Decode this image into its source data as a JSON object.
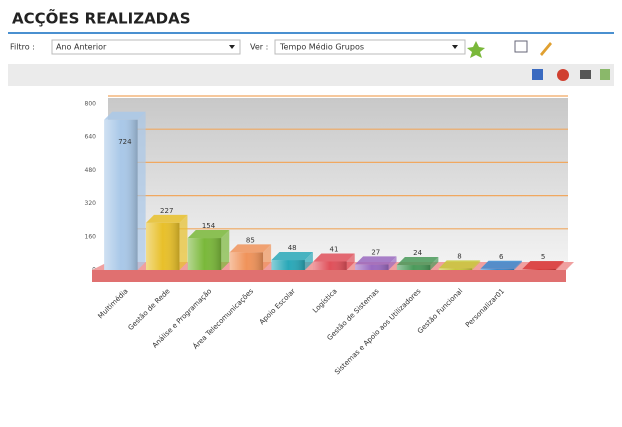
{
  "header": {
    "title": "ACÇÕES REALIZADAS"
  },
  "filters": {
    "filter_label": "Filtro :",
    "filter_value": "Ano Anterior",
    "view_label": "Ver :",
    "view_value": "Tempo Médio Grupos"
  },
  "chart_data": {
    "type": "bar3d",
    "categories": [
      "Multimédia",
      "Gestão de Rede",
      "Análise e Programação",
      "Área Telecomunicações",
      "Apoio Escolar",
      "Logística",
      "Gestão de Sistemas",
      "Sistemas e Apoio aos Utilizadores",
      "Gestão Funcional",
      "Personalizar01",
      null
    ],
    "values": [
      724,
      227,
      154,
      85,
      48,
      41,
      27,
      24,
      8,
      6,
      5
    ],
    "colors": [
      "#a9c8e8",
      "#e8c02a",
      "#7ab83a",
      "#f0935a",
      "#2aa8b8",
      "#e0505a",
      "#9a6ac0",
      "#4a9a5a",
      "#c8c83a",
      "#3a8ad0",
      "#d83a3a"
    ],
    "ylim": [
      0,
      800
    ],
    "yticks": [
      0,
      160,
      320,
      480,
      640,
      800
    ],
    "grid": true
  }
}
